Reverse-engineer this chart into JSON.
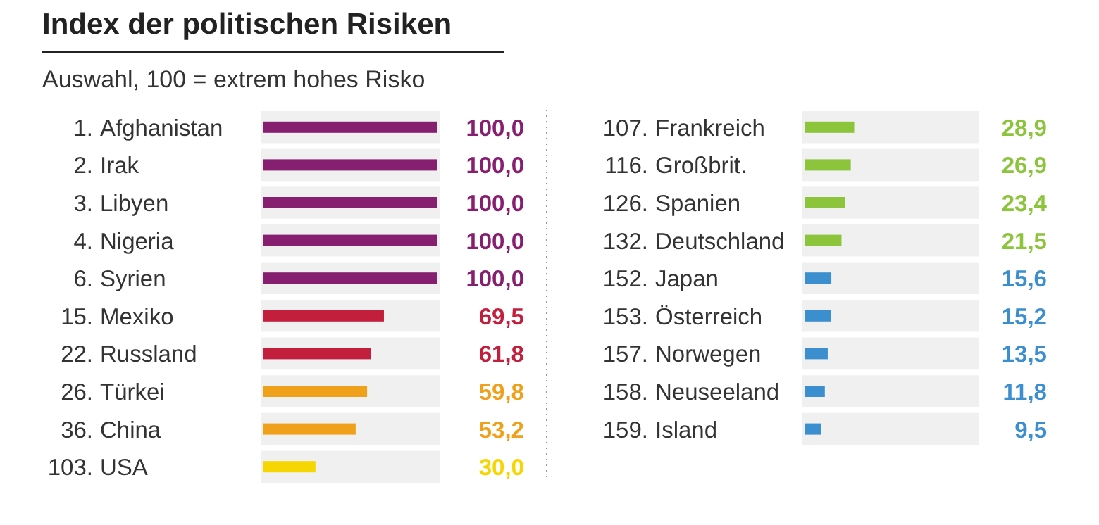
{
  "chart_data": [
    {
      "type": "bar",
      "orientation": "horizontal",
      "title": "Index der politischen Risiken",
      "subtitle": "Auswahl, 100 = extrem hohes Risko",
      "categories": [
        "1. Afghanistan",
        "2. Irak",
        "3. Libyen",
        "4. Nigeria",
        "6. Syrien",
        "15. Mexiko",
        "22. Russland",
        "26. Türkei",
        "36. China",
        "103. USA"
      ],
      "values": [
        100,
        100,
        100,
        100,
        100,
        69.5,
        61.8,
        59.8,
        53.2,
        30
      ],
      "colors": [
        "#861f6f",
        "#861f6f",
        "#861f6f",
        "#861f6f",
        "#861f6f",
        "#c21f3c",
        "#c21f3c",
        "#f0a11c",
        "#f0a11c",
        "#f5d600"
      ],
      "value_labels": [
        "100,0",
        "100,0",
        "100,0",
        "100,0",
        "100,0",
        "69,5",
        "61,8",
        "59,8",
        "53,2",
        "30,0"
      ],
      "xlim": [
        0,
        100
      ],
      "tick_labels": false
    },
    {
      "type": "bar",
      "orientation": "horizontal",
      "categories": [
        "107. Frankreich",
        "116. Großbrit.",
        "126. Spanien",
        "132. Deutschland",
        "152. Japan",
        "153. Österreich",
        "157. Norwegen",
        "158. Neuseeland",
        "159. Island"
      ],
      "values": [
        28.9,
        26.9,
        23.4,
        21.5,
        15.6,
        15.2,
        13.5,
        11.8,
        9.5
      ],
      "colors": [
        "#8cc43c",
        "#8cc43c",
        "#8cc43c",
        "#8cc43c",
        "#3b8fcf",
        "#3b8fcf",
        "#3b8fcf",
        "#3b8fcf",
        "#3b8fcf"
      ],
      "value_labels": [
        "28,9",
        "26,9",
        "23,4",
        "21,5",
        "15,6",
        "15,2",
        "13,5",
        "11,8",
        "9,5"
      ],
      "xlim": [
        0,
        100
      ],
      "tick_labels": false
    }
  ]
}
